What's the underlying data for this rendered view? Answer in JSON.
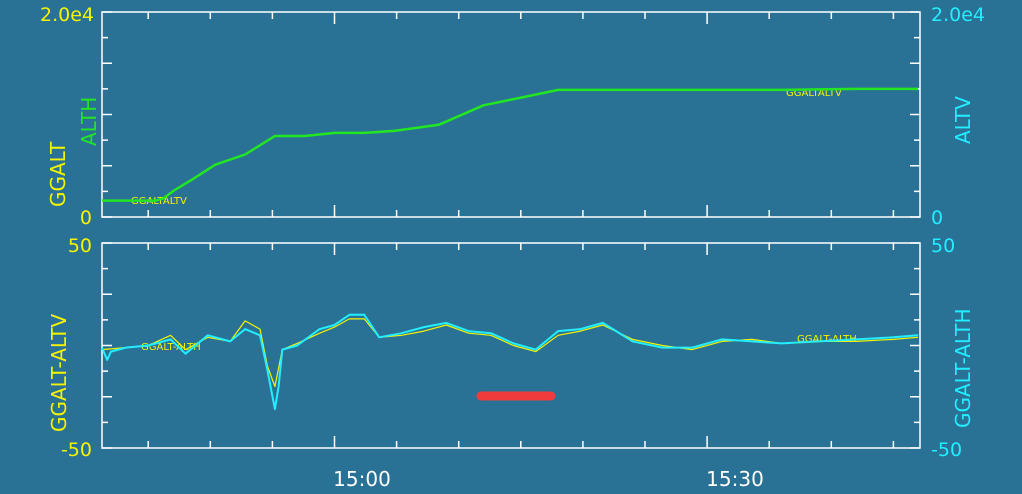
{
  "colors": {
    "background": "#2a7196",
    "frame": "#ffffff",
    "yellow": "#f4f400",
    "green": "#22e622",
    "cyan": "#22eeff",
    "red": "#ef3b3b"
  },
  "chart_data": [
    {
      "type": "line",
      "panel": "top",
      "y_left_label_primary": "GGALT",
      "y_left_label_secondary": "ALTH",
      "y_right_label": "ALTV",
      "y_left_ticks": {
        "top": "2.0e4",
        "bottom": "0"
      },
      "y_right_ticks": {
        "top": "2.0e4",
        "bottom": "0"
      },
      "ylim": [
        0,
        20000
      ],
      "xlim": [
        14.688,
        15.783
      ],
      "grid": false,
      "series_note_left": "GGALTALTV",
      "series_note_right": "GGALTALTV",
      "series": [
        {
          "name": "ALTH",
          "x": [
            14.688,
            14.73,
            14.76,
            14.77,
            14.785,
            14.81,
            14.84,
            14.88,
            14.92,
            14.96,
            15.0,
            15.04,
            15.08,
            15.14,
            15.2,
            15.26,
            15.3,
            15.34,
            15.37,
            15.4,
            15.5,
            15.6,
            15.7,
            15.783
          ],
          "values": [
            1600,
            1600,
            1600,
            1800,
            2600,
            3700,
            5100,
            6100,
            7900,
            7900,
            8200,
            8200,
            8400,
            9000,
            10900,
            11800,
            12400,
            12400,
            12400,
            12400,
            12400,
            12400,
            12500,
            12500
          ]
        }
      ]
    },
    {
      "type": "line",
      "panel": "bottom",
      "y_left_label": "GGALT-ALTV",
      "y_right_label": "GGALT-ALTH",
      "y_left_ticks": {
        "top": "50",
        "bottom": "-50"
      },
      "y_right_ticks": {
        "top": "50",
        "bottom": "-50"
      },
      "ylim": [
        -50,
        50
      ],
      "xlim": [
        14.688,
        15.783
      ],
      "x_ticks": [
        "15:00",
        "15:30"
      ],
      "x_tick_values": [
        15.0,
        15.5
      ],
      "grid": false,
      "series_note_left": "GGALT-ALTH",
      "series_note_right": "GGALT-ALTH",
      "series": [
        {
          "name": "GGALT-ALTH",
          "x": [
            14.688,
            14.72,
            14.75,
            14.78,
            14.8,
            14.83,
            14.86,
            14.88,
            14.9,
            14.91,
            14.92,
            14.93,
            14.95,
            14.98,
            15.0,
            15.02,
            15.04,
            15.06,
            15.09,
            15.12,
            15.15,
            15.18,
            15.21,
            15.24,
            15.27,
            15.3,
            15.33,
            15.36,
            15.4,
            15.44,
            15.48,
            15.52,
            15.56,
            15.6,
            15.65,
            15.7,
            15.75,
            15.783
          ],
          "values": [
            -2,
            -1,
            0,
            5,
            -2,
            4,
            2,
            12,
            8,
            -10,
            -20,
            -2,
            1,
            6,
            9,
            13,
            13,
            4,
            5,
            7,
            10,
            6,
            5,
            0,
            -3,
            5,
            7,
            10,
            3,
            0,
            -2,
            2,
            3,
            1,
            2,
            2,
            3,
            4
          ]
        },
        {
          "name": "GGALT-ALTV",
          "x": [
            14.688,
            14.695,
            14.7,
            14.72,
            14.75,
            14.78,
            14.8,
            14.83,
            14.86,
            14.88,
            14.9,
            14.91,
            14.92,
            14.925,
            14.93,
            14.95,
            14.98,
            15.0,
            15.02,
            15.04,
            15.06,
            15.09,
            15.12,
            15.15,
            15.18,
            15.21,
            15.24,
            15.27,
            15.3,
            15.33,
            15.36,
            15.4,
            15.44,
            15.48,
            15.52,
            15.56,
            15.6,
            15.65,
            15.7,
            15.75,
            15.783
          ],
          "values": [
            -1,
            -7,
            -3,
            -1,
            0,
            3,
            -4,
            5,
            2,
            8,
            5,
            -12,
            -31,
            -20,
            -2,
            0,
            8,
            10,
            15,
            15,
            4,
            6,
            9,
            11,
            7,
            6,
            1,
            -2,
            7,
            8,
            11,
            2,
            -1,
            -1,
            3,
            2,
            1,
            2,
            3,
            4,
            5
          ]
        }
      ]
    }
  ]
}
